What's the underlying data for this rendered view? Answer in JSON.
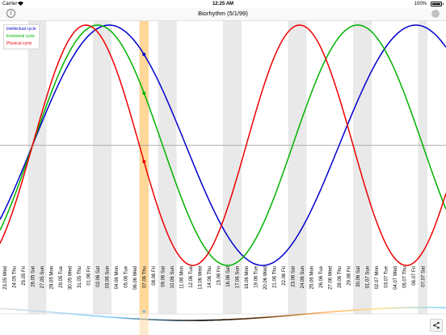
{
  "status_bar": {
    "carrier": "Carrier",
    "time": "12:25 AM",
    "battery": "100%"
  },
  "nav_bar": {
    "title": "Biorhythm (5/1/99)",
    "info_icon": "info-icon",
    "settings_icon": "gear-icon"
  },
  "share_icon": "share-icon",
  "colors": {
    "intellectual": "#0000cc",
    "emotional": "#00b300",
    "physical": "#ee0000",
    "highlight": "#ffd89a",
    "weekend_stripe": "#e9e9e9",
    "midline": "#9a9a9a"
  },
  "chart_data": {
    "type": "line",
    "title": "",
    "legend_placement": "top-left",
    "x": [
      "23.05 Wed",
      "24.05 Thu",
      "25.05 Fri",
      "26.05 Sat",
      "27.05 Sun",
      "28.05 Mon",
      "29.05 Tue",
      "30.05 Wed",
      "31.05 Thu",
      "01.06 Fri",
      "02.06 Sat",
      "03.06 Sun",
      "04.06 Mon",
      "05.06 Tue",
      "06.06 Wed",
      "07.06 Thu",
      "08.06 Fri",
      "09.06 Sat",
      "10.06 Sun",
      "11.06 Mon",
      "12.06 Tue",
      "13.06 Wed",
      "14.06 Thu",
      "15.06 Fri",
      "16.06 Sat",
      "17.06 Sun",
      "18.06 Mon",
      "19.06 Tue",
      "20.06 Wed",
      "21.06 Thu",
      "22.06 Fri",
      "23.06 Sat",
      "24.06 Sun",
      "25.06 Mon",
      "26.06 Tue",
      "27.06 Wed",
      "28.06 Thu",
      "29.06 Fri",
      "30.06 Sat",
      "01.07 Sun",
      "02.07 Mon",
      "03.07 Tue",
      "04.07 Wed",
      "05.07 Thu",
      "06.07 Fri",
      "07.07 Sat"
    ],
    "highlight_date": "07.06 Thu",
    "weekend_labels": [
      "Sat",
      "Sun"
    ],
    "ylim": [
      -1,
      1
    ],
    "series": [
      {
        "name": "Intellectual cycle",
        "period": 33,
        "zero_date": "26.05 Sat",
        "values_at_highlight": 0.55
      },
      {
        "name": "Emotional cycle",
        "period": 28,
        "zero_date": "26.05 Sat",
        "values_at_highlight": 0.27
      },
      {
        "name": "Physical cycle",
        "period": 23,
        "zero_date": "26.05 Sat",
        "values_at_highlight": -0.14
      }
    ]
  }
}
